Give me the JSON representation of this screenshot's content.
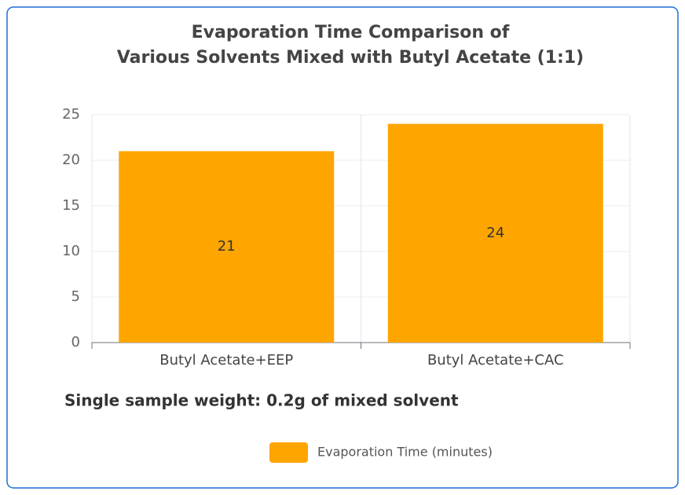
{
  "chart_data": {
    "type": "bar",
    "title": [
      "Evaporation Time Comparison of",
      "Various Solvents Mixed with Butyl Acetate (1:1)"
    ],
    "categories": [
      "Butyl Acetate+EEP",
      "Butyl Acetate+CAC"
    ],
    "series": [
      {
        "name": "Evaporation Time (minutes)",
        "color": "#ffa500",
        "values": [
          21,
          24
        ]
      }
    ],
    "ylim": [
      0,
      25
    ],
    "yticks": [
      0,
      5,
      10,
      15,
      20,
      25
    ],
    "grid": true,
    "annotation": "Single sample weight: 0.2g of mixed solvent",
    "legend": "bottom"
  }
}
